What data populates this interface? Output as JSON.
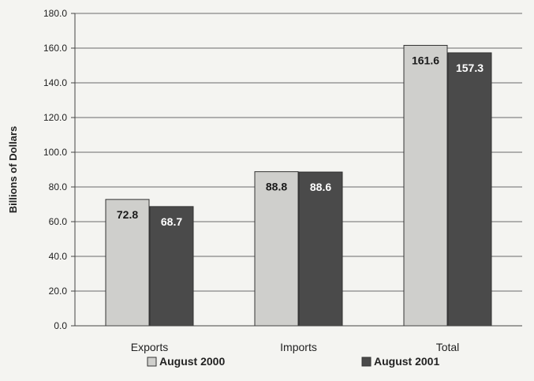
{
  "chart_data": {
    "type": "bar",
    "title": "",
    "xlabel": "",
    "ylabel": "Billions of Dollars",
    "categories": [
      "Exports",
      "Imports",
      "Total"
    ],
    "series": [
      {
        "name": "August 2000",
        "values": [
          72.8,
          88.8,
          161.6
        ],
        "labels": [
          "72.8",
          "88.8",
          "161.6"
        ],
        "color": "#cfcfcc",
        "label_color": "#1a1a1a"
      },
      {
        "name": "August 2001",
        "values": [
          68.7,
          88.6,
          157.3
        ],
        "labels": [
          "68.7",
          "88.6",
          "157.3"
        ],
        "color": "#4a4a4a",
        "label_color": "#ffffff"
      }
    ],
    "ylim": [
      0,
      180
    ],
    "y_ticks": [
      "0.0",
      "20.0",
      "40.0",
      "60.0",
      "80.0",
      "100.0",
      "120.0",
      "140.0",
      "160.0",
      "180.0"
    ],
    "y_tick_values": [
      0,
      20,
      40,
      60,
      80,
      100,
      120,
      140,
      160,
      180
    ],
    "grid": true,
    "legend_position": "bottom"
  }
}
